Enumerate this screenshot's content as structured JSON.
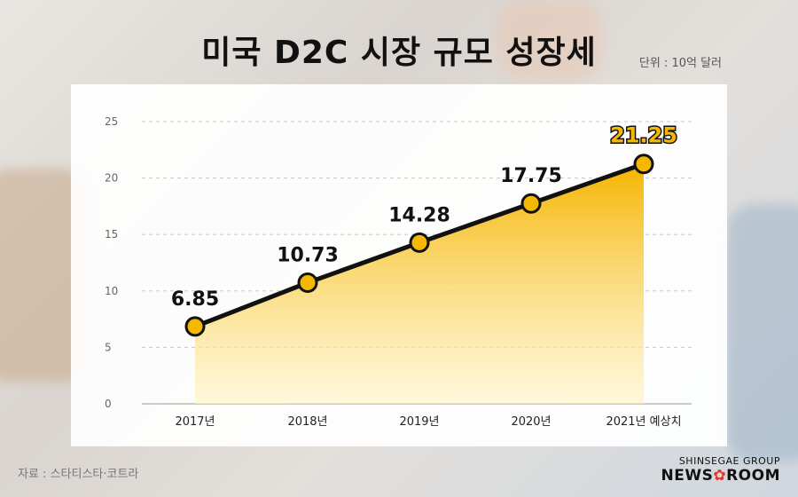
{
  "title": "미국 D2C 시장 규모 성장세",
  "unit_label": "단위 : 10억 달러",
  "source": "자료 : 스타티스타·코트라",
  "brand": {
    "group": "SHINSEGAE GROUP",
    "name_left": "NEWS",
    "name_right": "ROOM",
    "star": "✿"
  },
  "colors": {
    "accent": "#f5b800",
    "line": "#111111",
    "area_top": "#f5b400",
    "area_bottom": "#fff4c4"
  },
  "chart_data": {
    "type": "area",
    "categories": [
      "2017년",
      "2018년",
      "2019년",
      "2020년",
      "2021년 예상치"
    ],
    "values": [
      6.85,
      10.73,
      14.28,
      17.75,
      21.25
    ],
    "value_labels": [
      "6.85",
      "10.73",
      "14.28",
      "17.75",
      "21.25"
    ],
    "highlight_index": 4,
    "ylim": [
      0,
      25
    ],
    "yticks": [
      0,
      5,
      10,
      15,
      20,
      25
    ],
    "grid": true,
    "xlabel": "",
    "ylabel": ""
  }
}
